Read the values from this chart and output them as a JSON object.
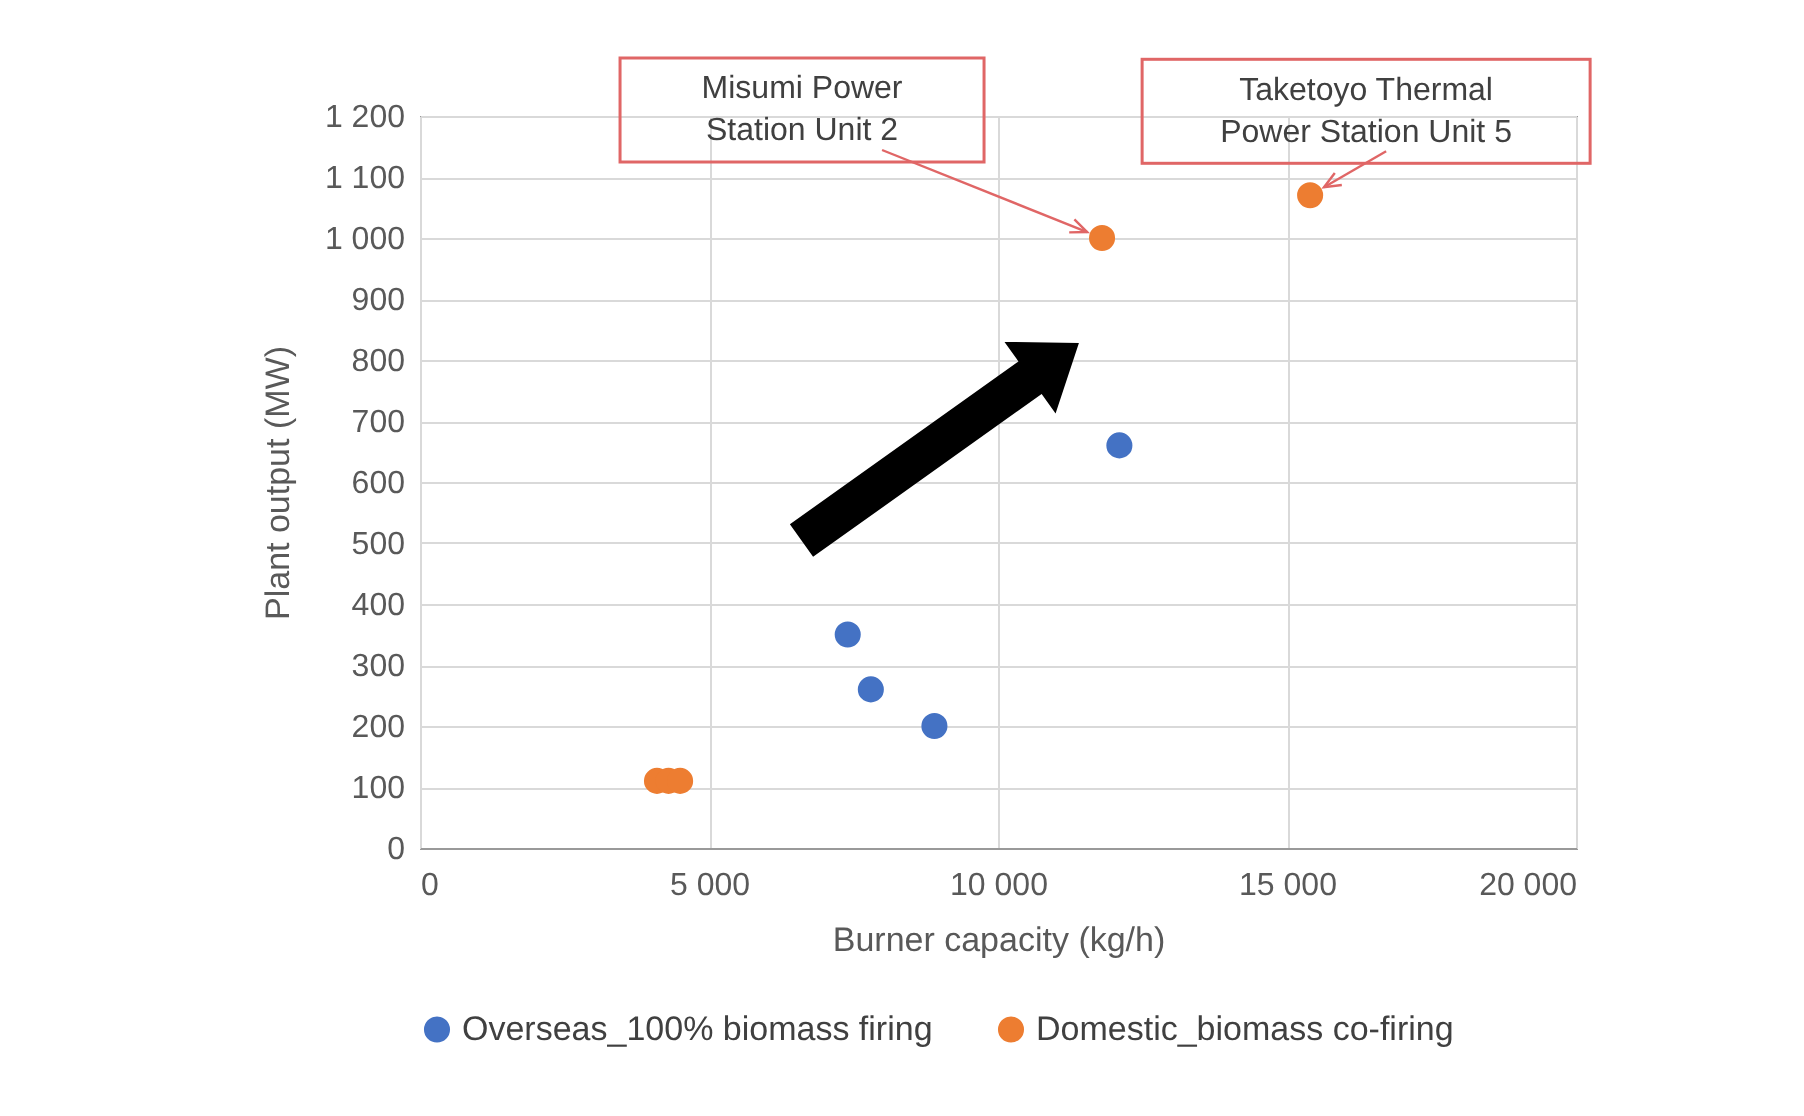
{
  "chart_data": {
    "type": "scatter",
    "xlabel": "Burner capacity (kg/h)",
    "ylabel": "Plant output (MW)",
    "xlim": [
      0,
      20000
    ],
    "ylim": [
      0,
      1200
    ],
    "xticks": [
      {
        "value": 0,
        "label": "0"
      },
      {
        "value": 5000,
        "label": "5 000"
      },
      {
        "value": 10000,
        "label": "10 000"
      },
      {
        "value": 15000,
        "label": "15 000"
      },
      {
        "value": 20000,
        "label": "20 000"
      }
    ],
    "yticks": [
      {
        "value": 0,
        "label": "0"
      },
      {
        "value": 100,
        "label": "100"
      },
      {
        "value": 200,
        "label": "200"
      },
      {
        "value": 300,
        "label": "300"
      },
      {
        "value": 400,
        "label": "400"
      },
      {
        "value": 500,
        "label": "500"
      },
      {
        "value": 600,
        "label": "600"
      },
      {
        "value": 700,
        "label": "700"
      },
      {
        "value": 800,
        "label": "800"
      },
      {
        "value": 900,
        "label": "900"
      },
      {
        "value": 1000,
        "label": "1 000"
      },
      {
        "value": 1100,
        "label": "1 100"
      },
      {
        "value": 1200,
        "label": "1 200"
      }
    ],
    "grid": true,
    "legend": "bottom",
    "marker": "circle",
    "series": [
      {
        "name": "Overseas_100% biomass firing",
        "color": "#4472c4",
        "x": [
          7400,
          7800,
          8900,
          12100
        ],
        "values": [
          350,
          260,
          200,
          660
        ]
      },
      {
        "name": "Domestic_biomass co-firing",
        "color": "#ed7d31",
        "x": [
          4100,
          4300,
          4500,
          11800,
          15400
        ],
        "values": [
          110,
          110,
          110,
          1000,
          1070
        ]
      }
    ],
    "annotations": [
      {
        "text": "Misumi Power Station Unit 2",
        "x": 11800,
        "y": 1000
      },
      {
        "text": "Taketoyo Thermal Power Station Unit 5",
        "x": 15400,
        "y": 1070
      }
    ]
  }
}
